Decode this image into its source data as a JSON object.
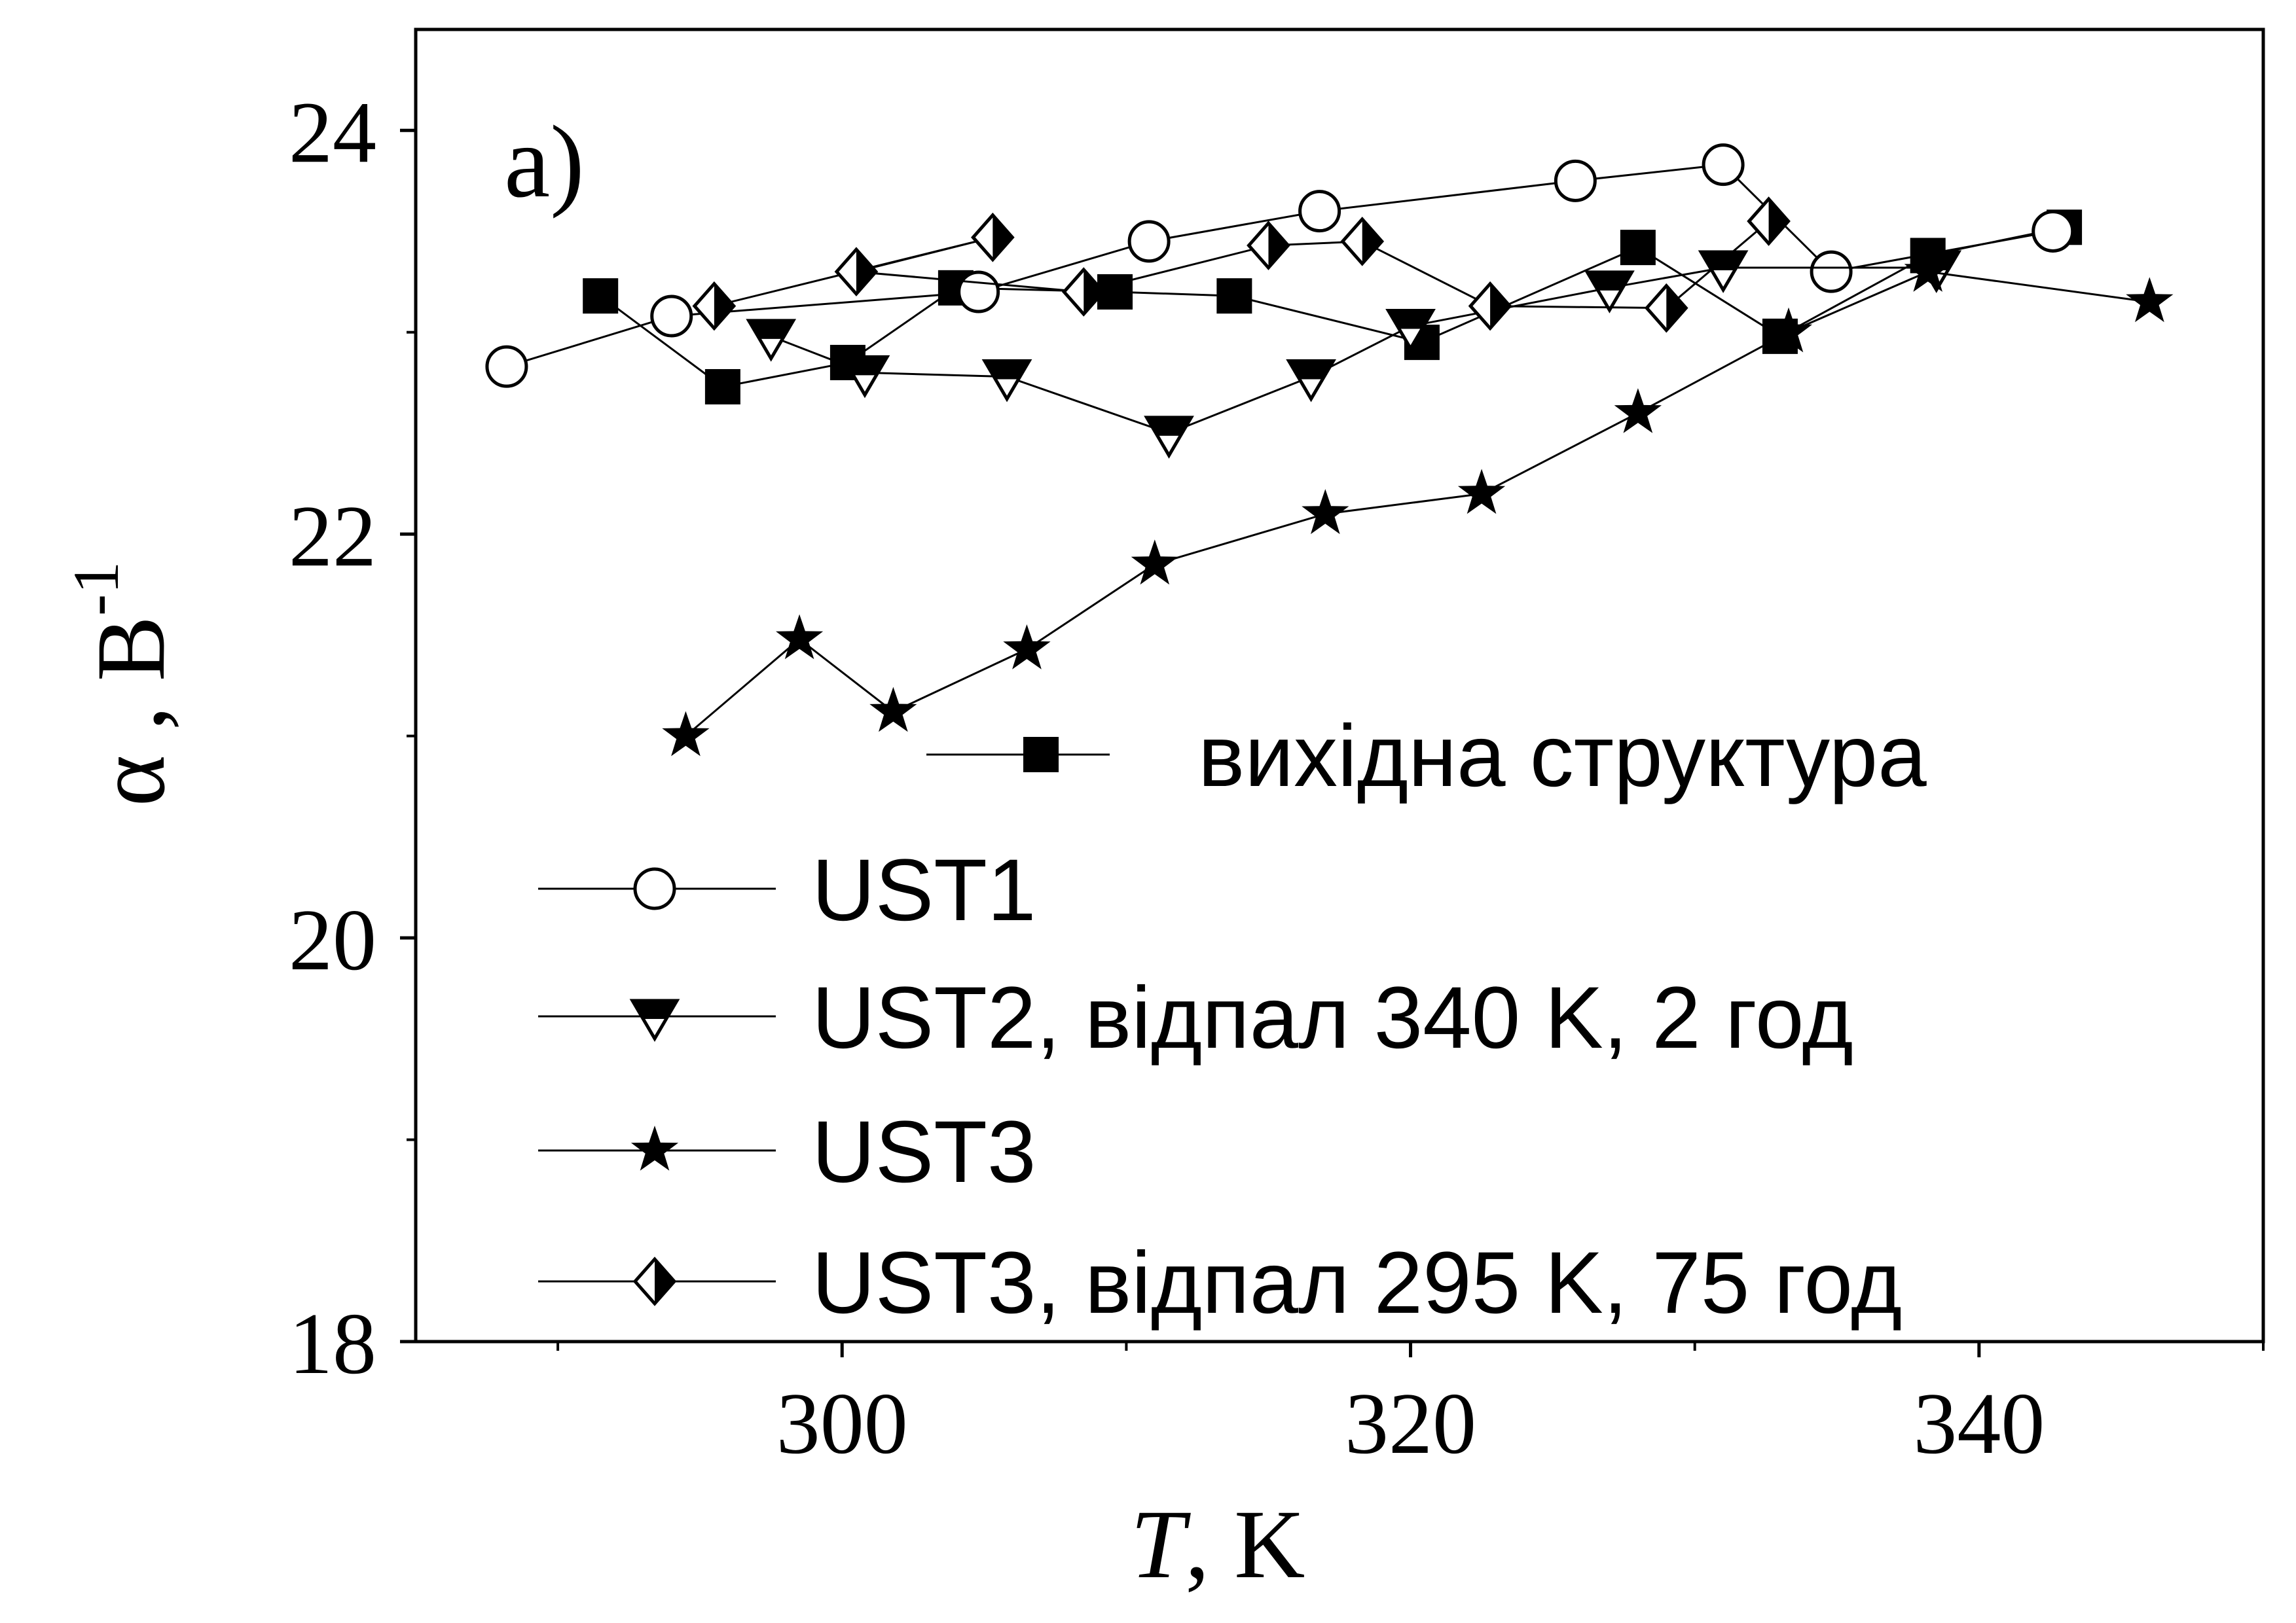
{
  "chart_data": {
    "type": "line",
    "panel_label": "a)",
    "xlabel": {
      "symbol": "T",
      "rest": ", K"
    },
    "ylabel": {
      "symbol": "α",
      "sep": " , ",
      "unit": "В",
      "exponent": "-1"
    },
    "xlim": [
      285,
      350
    ],
    "ylim": [
      18,
      24.5
    ],
    "x_ticks": [
      300,
      320,
      340
    ],
    "x_minor_ticks": [
      290,
      310,
      330,
      350
    ],
    "y_ticks": [
      18,
      20,
      22,
      24
    ],
    "y_minor_ticks": [
      19,
      21,
      23
    ],
    "grid": false,
    "legend_position": "bottom-right",
    "series": [
      {
        "name": "вихідна структура",
        "marker": "square-filled",
        "x": [
          291.5,
          295.8,
          300.2,
          304,
          309.6,
          313.8,
          320.4,
          328,
          333,
          338.2,
          343
        ],
        "y": [
          23.18,
          22.73,
          22.85,
          23.22,
          23.2,
          23.18,
          22.95,
          23.42,
          22.98,
          23.38,
          23.52
        ]
      },
      {
        "name": "UST1",
        "marker": "circle-open",
        "x": [
          288.2,
          294,
          304.8,
          310.8,
          316.8,
          325.8,
          331,
          334.8,
          342.6
        ],
        "y": [
          22.83,
          23.08,
          23.2,
          23.45,
          23.6,
          23.75,
          23.83,
          23.3,
          23.5
        ],
        "line_order": [
          0,
          1,
          2,
          3,
          4,
          5,
          6,
          7,
          8
        ]
      },
      {
        "name": "UST2, відпал 340 K, 2 год",
        "marker": "triangle-down-half",
        "x": [
          297.5,
          300.8,
          305.8,
          311.5,
          316.5,
          320,
          327,
          331,
          338.5
        ],
        "y": [
          22.98,
          22.8,
          22.78,
          22.5,
          22.78,
          23.03,
          23.22,
          23.32,
          23.32
        ]
      },
      {
        "name": "UST3",
        "marker": "star-filled",
        "x": [
          294.5,
          298.5,
          301.8,
          306.5,
          311,
          317,
          322.5,
          328,
          333.3,
          338.2,
          346
        ],
        "y": [
          21.0,
          21.48,
          21.12,
          21.43,
          21.85,
          22.1,
          22.2,
          22.6,
          23.0,
          23.3,
          23.15
        ]
      },
      {
        "name": "UST3, відпал 295 K, 75 год",
        "marker": "diamond-half",
        "x": [
          295.5,
          300.5,
          305.3,
          308.5,
          315,
          318.3,
          322.8,
          329,
          332.6
        ],
        "y": [
          23.13,
          23.3,
          23.47,
          23.2,
          23.43,
          23.45,
          23.13,
          23.12,
          23.55
        ],
        "line_order": [
          0,
          2,
          1,
          3,
          4,
          5,
          6,
          7,
          8
        ]
      }
    ]
  }
}
